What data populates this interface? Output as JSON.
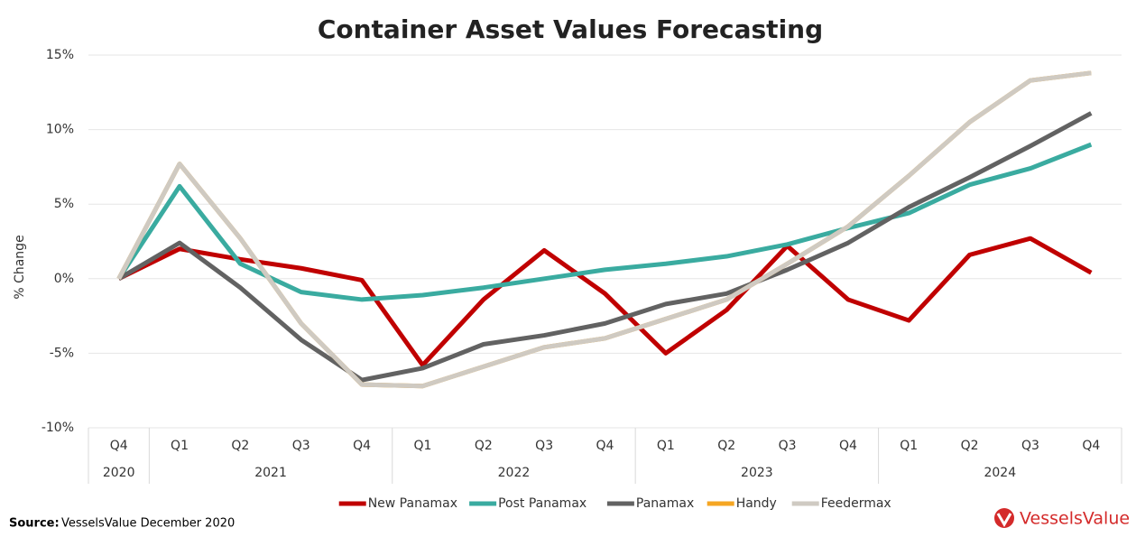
{
  "chart_data": {
    "type": "line",
    "title": "Container Asset Values Forecasting",
    "y_label": "% Change",
    "categories": [
      "Q4",
      "Q1",
      "Q2",
      "Q3",
      "Q4",
      "Q1",
      "Q2",
      "Q3",
      "Q4",
      "Q1",
      "Q2",
      "Q3",
      "Q4",
      "Q1",
      "Q2",
      "Q3",
      "Q4"
    ],
    "groups": [
      {
        "label": "2020",
        "span": 1
      },
      {
        "label": "2021",
        "span": 4
      },
      {
        "label": "2022",
        "span": 4
      },
      {
        "label": "2023",
        "span": 4
      },
      {
        "label": "2024",
        "span": 4
      }
    ],
    "series": [
      {
        "name": "New Panamax",
        "color": "#c00000",
        "values": [
          0,
          2.0,
          1.3,
          0.7,
          -0.1,
          -5.8,
          -1.4,
          1.9,
          -1.0,
          -5.0,
          -2.1,
          2.2,
          -1.4,
          -2.8,
          1.6,
          2.7,
          0.4
        ]
      },
      {
        "name": "Post Panamax",
        "color": "#3aaba0",
        "values": [
          0,
          6.2,
          1.0,
          -0.9,
          -1.4,
          -1.1,
          -0.6,
          0,
          0.6,
          1.0,
          1.5,
          2.3,
          3.4,
          4.4,
          6.3,
          7.4,
          9.0
        ]
      },
      {
        "name": "Panamax",
        "color": "#626262",
        "values": [
          0,
          2.4,
          -0.6,
          -4.1,
          -6.8,
          -6.0,
          -4.4,
          -3.8,
          -3.0,
          -1.7,
          -1.0,
          0.6,
          2.4,
          4.8,
          6.8,
          8.9,
          11.1
        ]
      },
      {
        "name": "Handy",
        "color": "#f5a623",
        "values": [
          0,
          7.7,
          2.7,
          -3.0,
          -7.1,
          -7.2,
          -5.9,
          -4.6,
          -4.0,
          -2.7,
          -1.4,
          1.0,
          3.5,
          6.9,
          10.5,
          13.3,
          13.8
        ]
      },
      {
        "name": "Feedermax",
        "color": "#cfcac2",
        "values": [
          0,
          7.7,
          2.7,
          -3.0,
          -7.1,
          -7.2,
          -5.9,
          -4.6,
          -4.0,
          -2.7,
          -1.4,
          1.0,
          3.5,
          6.9,
          10.5,
          13.3,
          13.8
        ]
      }
    ],
    "ylim": [
      -10,
      15
    ],
    "yticks": [
      {
        "value": -10,
        "label": "-10%"
      },
      {
        "value": -5,
        "label": "-5%"
      },
      {
        "value": 0,
        "label": "0%"
      },
      {
        "value": 5,
        "label": "5%"
      },
      {
        "value": 10,
        "label": "10%"
      },
      {
        "value": 15,
        "label": "15%"
      }
    ],
    "grid": true,
    "legend": "bottom"
  },
  "footer": {
    "source_label": "Source:",
    "source": "VesselsValue December 2020",
    "logo": "VesselsValue"
  }
}
